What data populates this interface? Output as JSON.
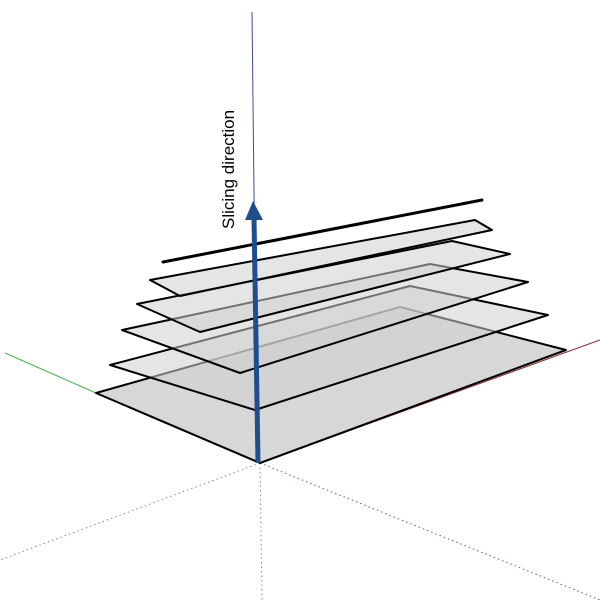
{
  "label": "Slicing direction",
  "colors": {
    "background": "#ffffff",
    "outline": "#000000",
    "slice_fill": "#d0d0d0",
    "arrow": "#1f4e8c",
    "axis_vertical": "#3a4fa0",
    "axis_green": "#4caf50",
    "axis_red": "#8b2a2a",
    "axis_dotted": "#888888"
  },
  "slice_count": 5
}
